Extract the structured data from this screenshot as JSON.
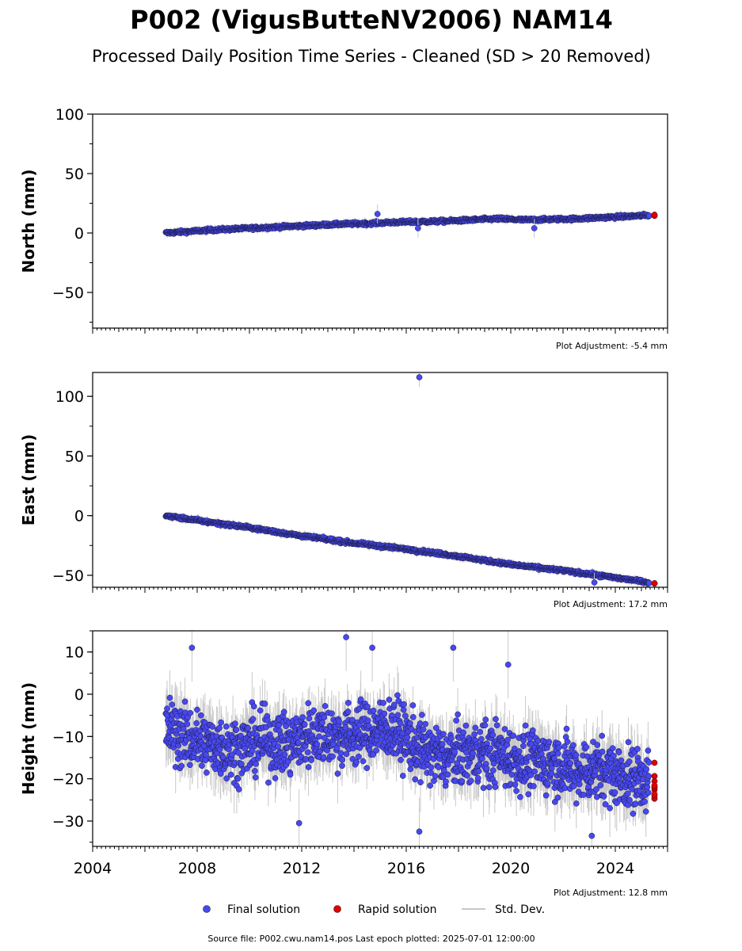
{
  "title": "P002 (VigusButteNV2006) NAM14",
  "subtitle": "Processed Daily Position Time Series - Cleaned (SD > 20 Removed)",
  "colors": {
    "final": "#4848f0",
    "rapid": "#e00000",
    "stddev": "#c8c8c8"
  },
  "legend": [
    {
      "label": "Final solution",
      "marker": "dot-blue"
    },
    {
      "label": "Rapid solution",
      "marker": "dot-red"
    },
    {
      "label": "Std. Dev.",
      "marker": "line-gray"
    }
  ],
  "footer": "Source file: P002.cwu.nam14.pos  Last epoch plotted: 2025-07-01 12:00:00",
  "chart_data": [
    {
      "type": "scatter",
      "ylabel": "North (mm)",
      "ylim": [
        -80,
        100
      ],
      "yticks": [
        100,
        50,
        0,
        -50
      ],
      "ytick_labels": [
        "100",
        "50",
        "0",
        "−50"
      ],
      "xlim": [
        2004,
        2026
      ],
      "xticks": [],
      "xtick_labels": [],
      "adjustment": "Plot Adjustment: -5.4 mm",
      "series": [
        {
          "name": "Final solution",
          "x": [
            2006.8,
            2007.5,
            2008.5,
            2009.5,
            2010.5,
            2011.5,
            2012.5,
            2013.5,
            2014.5,
            2015.5,
            2016.5,
            2017.5,
            2018.5,
            2019.5,
            2020.5,
            2021.5,
            2022.5,
            2023.5,
            2024.5,
            2025.3
          ],
          "y": [
            0,
            1,
            2.5,
            3.5,
            4.5,
            5.5,
            6.5,
            7.5,
            8,
            9,
            9.5,
            10,
            11,
            12,
            11,
            11.5,
            12,
            13,
            14,
            15
          ]
        },
        {
          "name": "Rapid solution",
          "x": [
            2025.5
          ],
          "y": [
            15
          ]
        }
      ],
      "outliers": [
        {
          "x": 2014.9,
          "y": 16
        },
        {
          "x": 2016.45,
          "y": 4
        },
        {
          "x": 2020.9,
          "y": 4
        }
      ]
    },
    {
      "type": "scatter",
      "ylabel": "East (mm)",
      "ylim": [
        -60,
        120
      ],
      "yticks": [
        100,
        50,
        0,
        -50
      ],
      "ytick_labels": [
        "100",
        "50",
        "0",
        "−50"
      ],
      "xlim": [
        2004,
        2026
      ],
      "xticks": [],
      "xtick_labels": [],
      "adjustment": "Plot Adjustment: 17.2 mm",
      "series": [
        {
          "name": "Final solution",
          "x": [
            2006.8,
            2008,
            2010,
            2012,
            2014,
            2016,
            2018,
            2020,
            2022,
            2024,
            2025.3
          ],
          "y": [
            0,
            -4,
            -10,
            -17,
            -23,
            -28,
            -34,
            -41,
            -46,
            -52,
            -56
          ]
        },
        {
          "name": "Rapid solution",
          "x": [
            2025.5
          ],
          "y": [
            -57
          ]
        }
      ],
      "outliers": [
        {
          "x": 2016.5,
          "y": 116
        },
        {
          "x": 2023.2,
          "y": -56
        }
      ]
    },
    {
      "type": "scatter",
      "ylabel": "Height (mm)",
      "ylim": [
        -36,
        15
      ],
      "yticks": [
        10,
        0,
        -10,
        -20,
        -30
      ],
      "ytick_labels": [
        "10",
        "0",
        "−10",
        "−20",
        "−30"
      ],
      "xlim": [
        2004,
        2026
      ],
      "xticks": [
        2004,
        2008,
        2012,
        2016,
        2020,
        2024
      ],
      "xtick_labels": [
        "2004",
        "2008",
        "2012",
        "2016",
        "2020",
        "2024"
      ],
      "adjustment": "Plot Adjustment: 12.8 mm",
      "series": [
        {
          "name": "Final solution",
          "x": [
            2006.8,
            2007.5,
            2008.5,
            2009.5,
            2010.5,
            2011.5,
            2012.5,
            2013.5,
            2014.5,
            2015.5,
            2016.5,
            2017.5,
            2018.5,
            2019.5,
            2020.5,
            2021.5,
            2022.5,
            2023.5,
            2024.5,
            2025.3
          ],
          "y": [
            -8,
            -10,
            -12,
            -13,
            -11,
            -12,
            -9,
            -10,
            -9,
            -8,
            -13,
            -15,
            -14,
            -14,
            -16,
            -16,
            -18,
            -18,
            -20,
            -20
          ]
        },
        {
          "name": "Rapid solution",
          "x": [
            2025.5
          ],
          "y": [
            -20
          ]
        }
      ],
      "outliers": [
        {
          "x": 2013.7,
          "y": 13.5
        },
        {
          "x": 2014.7,
          "y": 11
        },
        {
          "x": 2017.8,
          "y": 11
        },
        {
          "x": 2019.9,
          "y": 7
        },
        {
          "x": 2007.8,
          "y": 11
        },
        {
          "x": 2011.9,
          "y": -30.5
        },
        {
          "x": 2016.5,
          "y": -32.5
        },
        {
          "x": 2023.1,
          "y": -33.5
        }
      ]
    }
  ]
}
